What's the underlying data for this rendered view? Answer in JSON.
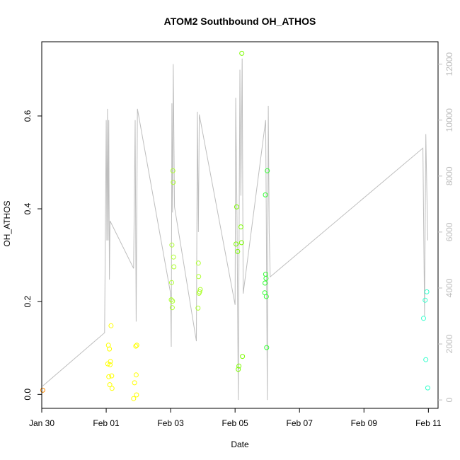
{
  "chart_data": {
    "type": "scatter",
    "title": "ATOM2 Southbound OH_ATHOS",
    "xlabel": "Date",
    "ylabel": "OH_ATHOS",
    "x_ticks": [
      "Jan 30",
      "Feb 01",
      "Feb 03",
      "Feb 05",
      "Feb 07",
      "Feb 09",
      "Feb 11"
    ],
    "xlim_days": [
      -1.0,
      11.3
    ],
    "ylim": [
      -0.03,
      0.76
    ],
    "y_ticks": [
      "0.0",
      "0.2",
      "0.4",
      "0.6"
    ],
    "y_right_ticks": [
      "0",
      "2000",
      "4000",
      "6000",
      "8000",
      "10000",
      "12000"
    ],
    "y_right_lim": [
      -300,
      12800
    ],
    "grid": false,
    "points": [
      {
        "x": -0.97,
        "y": 0.009,
        "color": "#ff8c00"
      },
      {
        "x": 1.05,
        "y": 0.066,
        "color": "#ffff00"
      },
      {
        "x": 1.07,
        "y": 0.106,
        "color": "#ffff00"
      },
      {
        "x": 1.08,
        "y": 0.038,
        "color": "#ffff00"
      },
      {
        "x": 1.1,
        "y": 0.098,
        "color": "#ffff00"
      },
      {
        "x": 1.11,
        "y": 0.021,
        "color": "#ffff00"
      },
      {
        "x": 1.12,
        "y": 0.064,
        "color": "#ffff00"
      },
      {
        "x": 1.13,
        "y": 0.071,
        "color": "#ffff00"
      },
      {
        "x": 1.15,
        "y": 0.148,
        "color": "#ffff00"
      },
      {
        "x": 1.17,
        "y": 0.04,
        "color": "#ffff00"
      },
      {
        "x": 1.18,
        "y": 0.013,
        "color": "#ffff00"
      },
      {
        "x": 1.85,
        "y": -0.009,
        "color": "#ffff00"
      },
      {
        "x": 1.88,
        "y": 0.025,
        "color": "#ffff00"
      },
      {
        "x": 1.92,
        "y": 0.104,
        "color": "#ffff00"
      },
      {
        "x": 1.93,
        "y": 0.042,
        "color": "#ffff00"
      },
      {
        "x": 1.94,
        "y": -0.001,
        "color": "#ffff00"
      },
      {
        "x": 1.95,
        "y": 0.106,
        "color": "#ffff00"
      },
      {
        "x": 3.02,
        "y": 0.204,
        "color": "#adff2f"
      },
      {
        "x": 3.03,
        "y": 0.241,
        "color": "#adff2f"
      },
      {
        "x": 3.04,
        "y": 0.322,
        "color": "#adff2f"
      },
      {
        "x": 3.05,
        "y": 0.187,
        "color": "#adff2f"
      },
      {
        "x": 3.06,
        "y": 0.201,
        "color": "#adff2f"
      },
      {
        "x": 3.07,
        "y": 0.482,
        "color": "#adff2f"
      },
      {
        "x": 3.08,
        "y": 0.457,
        "color": "#adff2f"
      },
      {
        "x": 3.09,
        "y": 0.296,
        "color": "#adff2f"
      },
      {
        "x": 3.1,
        "y": 0.275,
        "color": "#adff2f"
      },
      {
        "x": 3.85,
        "y": 0.186,
        "color": "#adff2f"
      },
      {
        "x": 3.86,
        "y": 0.283,
        "color": "#adff2f"
      },
      {
        "x": 3.87,
        "y": 0.254,
        "color": "#adff2f"
      },
      {
        "x": 3.88,
        "y": 0.218,
        "color": "#adff2f"
      },
      {
        "x": 3.9,
        "y": 0.221,
        "color": "#adff2f"
      },
      {
        "x": 3.92,
        "y": 0.226,
        "color": "#adff2f"
      },
      {
        "x": 5.03,
        "y": 0.324,
        "color": "#7cfc00"
      },
      {
        "x": 5.05,
        "y": 0.404,
        "color": "#7cfc00"
      },
      {
        "x": 5.08,
        "y": 0.308,
        "color": "#7cfc00"
      },
      {
        "x": 5.1,
        "y": 0.054,
        "color": "#7cfc00"
      },
      {
        "x": 5.12,
        "y": 0.061,
        "color": "#7cfc00"
      },
      {
        "x": 5.18,
        "y": 0.361,
        "color": "#7cfc00"
      },
      {
        "x": 5.2,
        "y": 0.327,
        "color": "#7cfc00"
      },
      {
        "x": 5.21,
        "y": 0.735,
        "color": "#7cfc00"
      },
      {
        "x": 5.23,
        "y": 0.082,
        "color": "#7cfc00"
      },
      {
        "x": 5.92,
        "y": 0.219,
        "color": "#33ff33"
      },
      {
        "x": 5.93,
        "y": 0.24,
        "color": "#33ff33"
      },
      {
        "x": 5.94,
        "y": 0.43,
        "color": "#33ff33"
      },
      {
        "x": 5.95,
        "y": 0.259,
        "color": "#33ff33"
      },
      {
        "x": 5.96,
        "y": 0.25,
        "color": "#33ff33"
      },
      {
        "x": 5.97,
        "y": 0.211,
        "color": "#33ff33"
      },
      {
        "x": 5.98,
        "y": 0.101,
        "color": "#33ff33"
      },
      {
        "x": 6.0,
        "y": 0.482,
        "color": "#33ff33"
      },
      {
        "x": 10.85,
        "y": 0.164,
        "color": "#33ffcc"
      },
      {
        "x": 10.9,
        "y": 0.203,
        "color": "#33ffcc"
      },
      {
        "x": 10.92,
        "y": 0.075,
        "color": "#33ffcc"
      },
      {
        "x": 10.95,
        "y": 0.221,
        "color": "#33ffcc"
      },
      {
        "x": 10.98,
        "y": 0.014,
        "color": "#33ffcc"
      }
    ],
    "secondary_line": {
      "color": "#bebebe",
      "points": [
        [
          -0.97,
          500
        ],
        [
          0.95,
          2400
        ],
        [
          1.0,
          10000
        ],
        [
          1.02,
          5700
        ],
        [
          1.04,
          10400
        ],
        [
          1.06,
          5700
        ],
        [
          1.08,
          10000
        ],
        [
          1.1,
          4300
        ],
        [
          1.12,
          6400
        ],
        [
          1.85,
          4700
        ],
        [
          1.9,
          10000
        ],
        [
          1.93,
          2800
        ],
        [
          1.97,
          10400
        ],
        [
          3.0,
          3800
        ],
        [
          3.02,
          1900
        ],
        [
          3.04,
          10600
        ],
        [
          3.06,
          6700
        ],
        [
          3.08,
          12000
        ],
        [
          3.12,
          6900
        ],
        [
          3.8,
          2100
        ],
        [
          3.83,
          10300
        ],
        [
          3.86,
          6000
        ],
        [
          3.89,
          10200
        ],
        [
          5.0,
          3400
        ],
        [
          5.02,
          10800
        ],
        [
          5.06,
          6500
        ],
        [
          5.1,
          0
        ],
        [
          5.15,
          11800
        ],
        [
          5.18,
          7300
        ],
        [
          5.22,
          12200
        ],
        [
          5.25,
          3800
        ],
        [
          5.95,
          10000
        ],
        [
          5.97,
          6400
        ],
        [
          6.0,
          0
        ],
        [
          6.03,
          10500
        ],
        [
          6.06,
          6000
        ],
        [
          6.09,
          4400
        ],
        [
          10.83,
          9000
        ],
        [
          10.88,
          3000
        ],
        [
          10.92,
          9500
        ],
        [
          10.98,
          5700
        ]
      ]
    }
  }
}
